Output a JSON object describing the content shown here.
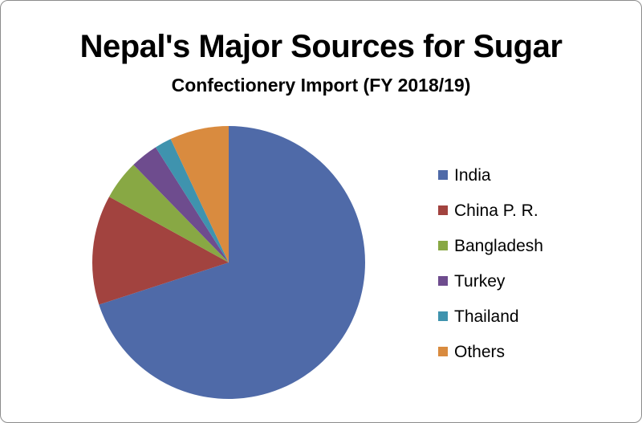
{
  "chart_data": {
    "type": "pie",
    "title": "Nepal's Major Sources for Sugar",
    "subtitle": "Confectionery  Import (FY 2018/19)",
    "legend_position": "right",
    "slices": [
      {
        "label": "India",
        "value": 70.0,
        "color": "#4F6AA8"
      },
      {
        "label": "China P. R.",
        "value": 13.0,
        "color": "#A2433F"
      },
      {
        "label": "Bangladesh",
        "value": 4.7,
        "color": "#88A844"
      },
      {
        "label": "Turkey",
        "value": 3.3,
        "color": "#6E4C8E"
      },
      {
        "label": "Thailand",
        "value": 2.0,
        "color": "#3F93AE"
      },
      {
        "label": "Others",
        "value": 7.0,
        "color": "#D98B3F"
      }
    ]
  }
}
